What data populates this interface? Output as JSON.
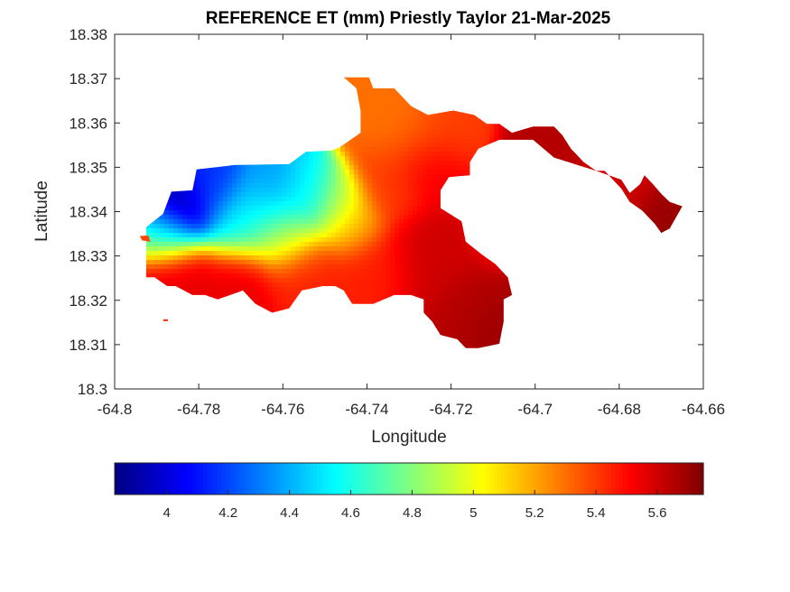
{
  "chart_data": {
    "type": "heatmap",
    "title": "REFERENCE ET (mm) Priestly Taylor 21-Mar-2025",
    "xlabel": "Longitude",
    "ylabel": "Latitude",
    "xlim": [
      -64.8,
      -64.66
    ],
    "ylim": [
      18.3,
      18.38
    ],
    "x_ticks": [
      -64.8,
      -64.78,
      -64.76,
      -64.74,
      -64.72,
      -64.7,
      -64.68,
      -64.66
    ],
    "x_tick_labels": [
      "-64.8",
      "-64.78",
      "-64.76",
      "-64.74",
      "-64.72",
      "-64.7",
      "-64.68",
      "-64.66"
    ],
    "y_ticks": [
      18.3,
      18.31,
      18.32,
      18.33,
      18.34,
      18.35,
      18.36,
      18.37,
      18.38
    ],
    "y_tick_labels": [
      "18.3",
      "18.31",
      "18.32",
      "18.33",
      "18.34",
      "18.35",
      "18.36",
      "18.37",
      "18.38"
    ],
    "grid": false,
    "colormap": "jet",
    "colorbar": {
      "orientation": "horizontal",
      "placement": "bottom",
      "clim": [
        3.83,
        5.75
      ],
      "ticks": [
        4,
        4.2,
        4.4,
        4.6,
        4.8,
        5,
        5.2,
        5.4,
        5.6
      ],
      "tick_labels": [
        "4",
        "4.2",
        "4.4",
        "4.6",
        "4.8",
        "5",
        "5.2",
        "5.4",
        "5.6"
      ]
    },
    "island_outline": [
      [
        -64.7925,
        18.3365
      ],
      [
        -64.7885,
        18.3395
      ],
      [
        -64.7865,
        18.3445
      ],
      [
        -64.7815,
        18.3448
      ],
      [
        -64.7805,
        18.3495
      ],
      [
        -64.7715,
        18.3505
      ],
      [
        -64.7585,
        18.3507
      ],
      [
        -64.7545,
        18.3535
      ],
      [
        -64.7485,
        18.3538
      ],
      [
        -64.7465,
        18.3545
      ],
      [
        -64.7415,
        18.3578
      ],
      [
        -64.7415,
        18.3628
      ],
      [
        -64.7425,
        18.3678
      ],
      [
        -64.7455,
        18.3703
      ],
      [
        -64.7395,
        18.3703
      ],
      [
        -64.7385,
        18.3678
      ],
      [
        -64.7335,
        18.3678
      ],
      [
        -64.7295,
        18.3638
      ],
      [
        -64.7255,
        18.3618
      ],
      [
        -64.7195,
        18.3628
      ],
      [
        -64.7145,
        18.3618
      ],
      [
        -64.7115,
        18.3598
      ],
      [
        -64.7085,
        18.3598
      ],
      [
        -64.7055,
        18.3578
      ],
      [
        -64.7005,
        18.3592
      ],
      [
        -64.6955,
        18.3592
      ],
      [
        -64.6935,
        18.3572
      ],
      [
        -64.6915,
        18.3542
      ],
      [
        -64.6885,
        18.3512
      ],
      [
        -64.6855,
        18.3492
      ],
      [
        -64.6835,
        18.3492
      ],
      [
        -64.6795,
        18.3452
      ],
      [
        -64.6775,
        18.3422
      ],
      [
        -64.6745,
        18.3402
      ],
      [
        -64.6715,
        18.3372
      ],
      [
        -64.67,
        18.3352
      ],
      [
        -64.668,
        18.3362
      ],
      [
        -64.665,
        18.3412
      ],
      [
        -64.668,
        18.3422
      ],
      [
        -64.67,
        18.344
      ],
      [
        -64.672,
        18.3462
      ],
      [
        -64.674,
        18.3482
      ],
      [
        -64.675,
        18.3462
      ],
      [
        -64.6775,
        18.3442
      ],
      [
        -64.6795,
        18.3472
      ],
      [
        -64.6855,
        18.3492
      ],
      [
        -64.6955,
        18.3522
      ],
      [
        -64.7005,
        18.3562
      ],
      [
        -64.7085,
        18.3562
      ],
      [
        -64.7135,
        18.3542
      ],
      [
        -64.7155,
        18.3512
      ],
      [
        -64.7155,
        18.3482
      ],
      [
        -64.7205,
        18.3478
      ],
      [
        -64.7225,
        18.3448
      ],
      [
        -64.7225,
        18.3408
      ],
      [
        -64.7175,
        18.3378
      ],
      [
        -64.7165,
        18.3332
      ],
      [
        -64.7125,
        18.3302
      ],
      [
        -64.7095,
        18.3282
      ],
      [
        -64.7065,
        18.3252
      ],
      [
        -64.7055,
        18.3212
      ],
      [
        -64.7075,
        18.3202
      ],
      [
        -64.7075,
        18.3152
      ],
      [
        -64.7085,
        18.3102
      ],
      [
        -64.7135,
        18.3092
      ],
      [
        -64.7165,
        18.3092
      ],
      [
        -64.7185,
        18.3112
      ],
      [
        -64.7225,
        18.3122
      ],
      [
        -64.7245,
        18.3152
      ],
      [
        -64.7265,
        18.3172
      ],
      [
        -64.7265,
        18.3202
      ],
      [
        -64.7295,
        18.3212
      ],
      [
        -64.7335,
        18.3212
      ],
      [
        -64.7385,
        18.3192
      ],
      [
        -64.7435,
        18.3192
      ],
      [
        -64.7455,
        18.3222
      ],
      [
        -64.7475,
        18.3232
      ],
      [
        -64.7505,
        18.3232
      ],
      [
        -64.7555,
        18.3222
      ],
      [
        -64.7585,
        18.3182
      ],
      [
        -64.7625,
        18.3172
      ],
      [
        -64.7665,
        18.3192
      ],
      [
        -64.7695,
        18.3222
      ],
      [
        -64.7725,
        18.3212
      ],
      [
        -64.7755,
        18.3202
      ],
      [
        -64.7785,
        18.3212
      ],
      [
        -64.7815,
        18.3212
      ],
      [
        -64.7835,
        18.3222
      ],
      [
        -64.7855,
        18.3232
      ],
      [
        -64.7875,
        18.3232
      ],
      [
        -64.7905,
        18.3252
      ],
      [
        -64.7925,
        18.3252
      ],
      [
        -64.7925,
        18.3332
      ]
    ],
    "cay": [
      [
        -64.794,
        18.3345
      ],
      [
        -64.7935,
        18.3335
      ],
      [
        -64.7915,
        18.3332
      ],
      [
        -64.792,
        18.3346
      ]
    ],
    "dot": [
      -64.788,
      18.3155
    ],
    "value_blobs": [
      {
        "lon": -64.785,
        "lat": 18.3395,
        "sigma": 0.0045,
        "value": 3.85
      },
      {
        "lon": -64.777,
        "lat": 18.345,
        "sigma": 0.0045,
        "value": 4.15
      },
      {
        "lon": -64.762,
        "lat": 18.343,
        "sigma": 0.005,
        "value": 4.35
      },
      {
        "lon": -64.754,
        "lat": 18.344,
        "sigma": 0.004,
        "value": 4.55
      },
      {
        "lon": -64.747,
        "lat": 18.342,
        "sigma": 0.004,
        "value": 4.85
      },
      {
        "lon": -64.77,
        "lat": 18.338,
        "sigma": 0.005,
        "value": 4.55
      },
      {
        "lon": -64.788,
        "lat": 18.335,
        "sigma": 0.004,
        "value": 4.7
      },
      {
        "lon": -64.76,
        "lat": 18.335,
        "sigma": 0.005,
        "value": 4.95
      },
      {
        "lon": -64.743,
        "lat": 18.337,
        "sigma": 0.004,
        "value": 5.15
      },
      {
        "lon": -64.735,
        "lat": 18.345,
        "sigma": 0.005,
        "value": 5.4
      },
      {
        "lon": -64.73,
        "lat": 18.358,
        "sigma": 0.006,
        "value": 5.3
      },
      {
        "lon": -64.72,
        "lat": 18.359,
        "sigma": 0.005,
        "value": 5.4
      },
      {
        "lon": -64.725,
        "lat": 18.35,
        "sigma": 0.005,
        "value": 5.55
      },
      {
        "lon": -64.725,
        "lat": 18.33,
        "sigma": 0.006,
        "value": 5.6
      },
      {
        "lon": -64.738,
        "lat": 18.328,
        "sigma": 0.005,
        "value": 5.45
      },
      {
        "lon": -64.715,
        "lat": 18.318,
        "sigma": 0.005,
        "value": 5.65
      },
      {
        "lon": -64.71,
        "lat": 18.315,
        "sigma": 0.004,
        "value": 5.7
      },
      {
        "lon": -64.77,
        "lat": 18.324,
        "sigma": 0.005,
        "value": 5.55
      },
      {
        "lon": -64.755,
        "lat": 18.325,
        "sigma": 0.005,
        "value": 5.45
      },
      {
        "lon": -64.785,
        "lat": 18.326,
        "sigma": 0.005,
        "value": 5.55
      },
      {
        "lon": -64.698,
        "lat": 18.355,
        "sigma": 0.005,
        "value": 5.65
      },
      {
        "lon": -64.68,
        "lat": 18.347,
        "sigma": 0.005,
        "value": 5.6
      },
      {
        "lon": -64.669,
        "lat": 18.339,
        "sigma": 0.004,
        "value": 5.7
      },
      {
        "lon": -64.708,
        "lat": 18.336,
        "sigma": 0.004,
        "value": 5.5
      }
    ],
    "background_value": 5.45
  }
}
